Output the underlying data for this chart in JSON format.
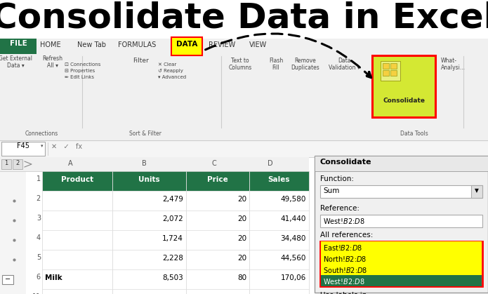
{
  "title": "Consolidate Data in Excel",
  "title_fontsize": 36,
  "title_fontweight": "bold",
  "bg_color": "#ffffff",
  "file_tab_color": "#217346",
  "data_tab_highlight": "#ffff00",
  "data_tab_border": "#ff0000",
  "consolidate_highlight": "#d4e833",
  "consolidate_border": "#ff0000",
  "header_bg": "#217346",
  "header_text_color": "#ffffff",
  "ref_text": "West!$B$2:$D$8",
  "all_references": [
    "East!$B$2:$D$8",
    "North!$B$2:$D$8",
    "South!$B$2:$D$8",
    "West!$B$2:$D$8"
  ],
  "ref_highlight_colors": [
    "#ffff00",
    "#ffff00",
    "#ffff00",
    "#217346"
  ],
  "ref_text_colors": [
    "#000000",
    "#000000",
    "#000000",
    "#ffffff"
  ],
  "formula_bar_cell": "F45"
}
